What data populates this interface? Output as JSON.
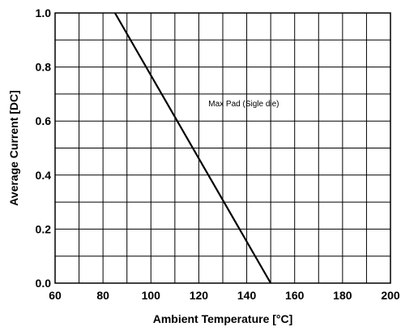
{
  "chart_data": {
    "type": "line",
    "xlabel": "Ambient Temperature [°C]",
    "ylabel": "Average Current [DC]",
    "xlim": [
      60,
      200
    ],
    "ylim": [
      0,
      1.0
    ],
    "x_ticks": [
      60,
      80,
      100,
      120,
      140,
      160,
      180,
      200
    ],
    "x_tick_labels": [
      "60",
      "80",
      "100",
      "120",
      "140",
      "160",
      "180",
      "200"
    ],
    "y_ticks": [
      0,
      0.2,
      0.4,
      0.6,
      0.8,
      1.0
    ],
    "y_tick_labels": [
      "0.0",
      "0.2",
      "0.4",
      "0.6",
      "0.8",
      "1.0"
    ],
    "x_minor_step": 10,
    "y_minor_step": 0.1,
    "grid": true,
    "series": [
      {
        "x": [
          85,
          150
        ],
        "y": [
          1.0,
          0.0
        ],
        "color": "#000000"
      }
    ],
    "annotations": [
      {
        "text": "Max Pad (Sigle die)",
        "x": 124,
        "y": 0.655
      }
    ]
  }
}
